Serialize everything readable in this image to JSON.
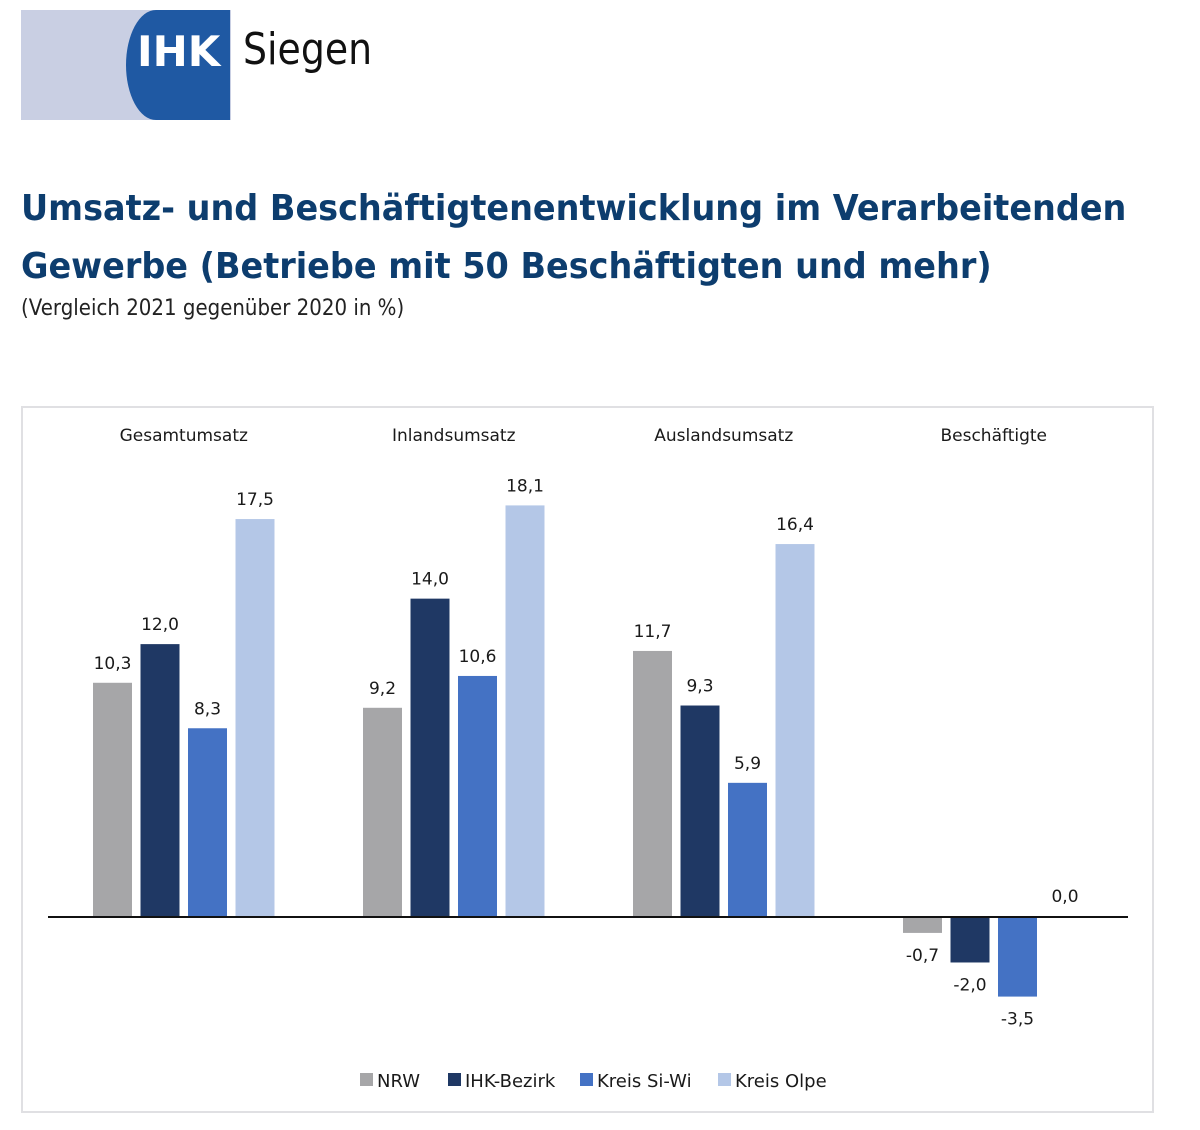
{
  "header": {
    "logo_short": "IHK",
    "logo_name": "Siegen",
    "logo_colors": {
      "light": "#c9cfe3",
      "dark": "#1f59a3"
    }
  },
  "title_line1": "Umsatz- und Beschäftigtenentwicklung im Verarbeitenden",
  "title_line2": "Gewerbe (Betriebe mit 50 Beschäftigten und mehr)",
  "subtitle": "(Vergleich 2021 gegenüber 2020 in %)",
  "chart_data": {
    "type": "bar",
    "title": "Umsatz- und Beschäftigtenentwicklung im Verarbeitenden Gewerbe (Betriebe mit 50 Beschäftigten und mehr)",
    "subtitle": "(Vergleich 2021 gegenüber 2020 in %)",
    "xlabel": "",
    "ylabel": "",
    "categories": [
      "Gesamtumsatz",
      "Inlandsumsatz",
      "Auslandsumsatz",
      "Beschäftigte"
    ],
    "series": [
      {
        "name": "NRW",
        "color": "#a6a6a8",
        "values": [
          10.3,
          9.2,
          11.7,
          -0.7
        ],
        "labels": [
          "10,3",
          "9,2",
          "11,7",
          "-0,7"
        ]
      },
      {
        "name": "IHK-Bezirk",
        "color": "#1f3864",
        "values": [
          12.0,
          14.0,
          9.3,
          -2.0
        ],
        "labels": [
          "12,0",
          "14,0",
          "9,3",
          "-2,0"
        ]
      },
      {
        "name": "Kreis Si-Wi",
        "color": "#4472c4",
        "values": [
          8.3,
          10.6,
          5.9,
          -3.5
        ],
        "labels": [
          "8,3",
          "10,6",
          "5,9",
          "-3,5"
        ]
      },
      {
        "name": "Kreis Olpe",
        "color": "#b4c7e7",
        "values": [
          17.5,
          18.1,
          16.4,
          0.0
        ],
        "labels": [
          "17,5",
          "18,1",
          "16,4",
          "0,0"
        ]
      }
    ],
    "ylim": [
      -3.5,
      18.1
    ],
    "grid": false,
    "axis_visible": false,
    "legend_position": "bottom"
  }
}
